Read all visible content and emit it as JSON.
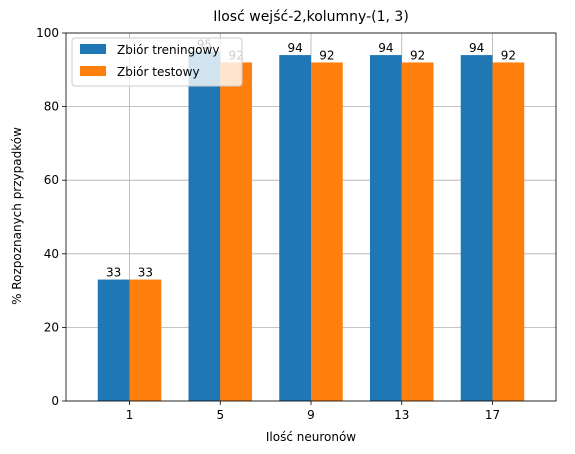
{
  "chart_data": {
    "type": "bar",
    "title": "Ilosć wejść-2,kolumny-(1, 3)",
    "xlabel": "Ilość neuronów",
    "ylabel": "% Rozpoznanych przypadków",
    "categories": [
      "1",
      "5",
      "9",
      "13",
      "17"
    ],
    "series": [
      {
        "name": "Zbiór treningowy",
        "values": [
          33,
          95,
          94,
          94,
          94
        ],
        "color": "#1f77b4"
      },
      {
        "name": "Zbiór testowy",
        "values": [
          33,
          92,
          92,
          92,
          92
        ],
        "color": "#ff7f0e"
      }
    ],
    "ylim": [
      0,
      100
    ],
    "yticks": [
      0,
      20,
      40,
      60,
      80,
      100
    ],
    "grid": true,
    "legend_position": "top-left"
  }
}
